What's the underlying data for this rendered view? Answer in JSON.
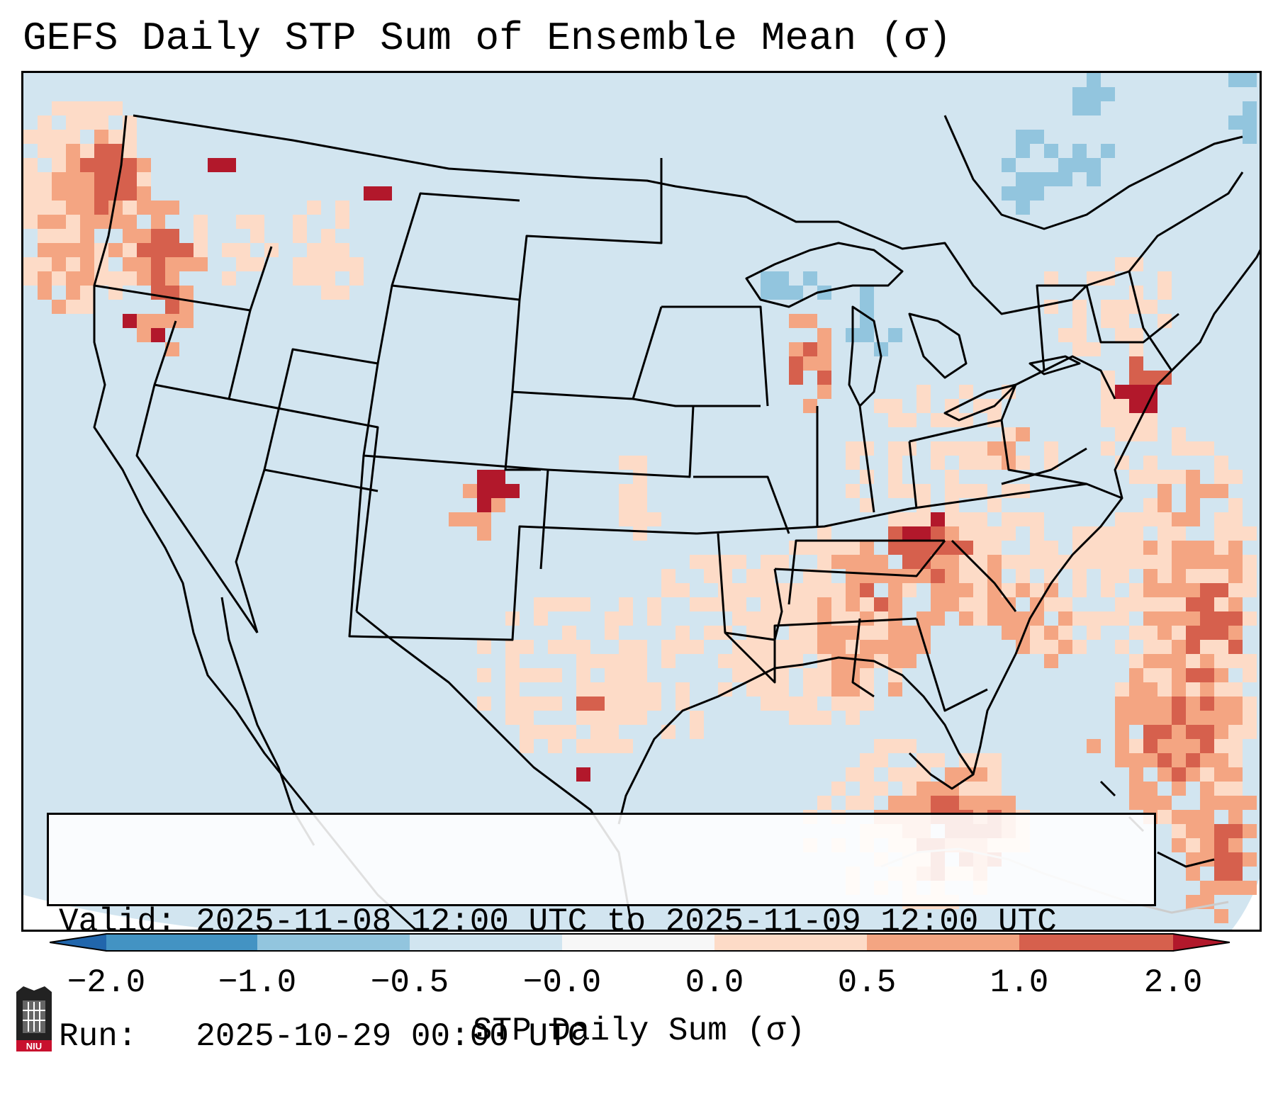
{
  "title": "GEFS Daily STP Sum of Ensemble Mean (σ)",
  "info": {
    "valid_line": "Valid: 2025-11-08 12:00 UTC to 2025-11-09 12:00 UTC",
    "run_line": "Run:   2025-10-29 00:00 UTC"
  },
  "colorbar": {
    "label": "STP Daily Sum (σ)",
    "ticks": [
      "−2.0",
      "−1.0",
      "−0.5",
      "−0.0",
      "0.0",
      "0.5",
      "1.0",
      "2.0"
    ],
    "bins": [
      {
        "range": "-2.0 to -1.0",
        "color": "#4393c3"
      },
      {
        "range": "-1.0 to -0.5",
        "color": "#92c5de"
      },
      {
        "range": "-0.5 to -0.0",
        "color": "#d1e5f0"
      },
      {
        "range": "-0.0 to 0.0",
        "color": "#f7f7f7"
      },
      {
        "range": "0.0 to 0.5",
        "color": "#fddbc7"
      },
      {
        "range": "0.5 to 1.0",
        "color": "#f4a582"
      },
      {
        "range": "1.0 to 2.0",
        "color": "#d6604d"
      },
      {
        "range": "above 2.0",
        "color": "#b2182b"
      },
      {
        "range": "below -2.0",
        "color": "#2166ac"
      }
    ]
  },
  "logo": {
    "text": "NIU"
  },
  "map_regions": [
    {
      "name": "pacific-northwest",
      "value": "high"
    },
    {
      "name": "colorado-southeast",
      "value": "very high"
    },
    {
      "name": "tennessee-valley",
      "value": "very high"
    },
    {
      "name": "new-jersey-coast",
      "value": "very high"
    },
    {
      "name": "texas-southwest",
      "value": "high"
    },
    {
      "name": "atlantic-offshore",
      "value": "high"
    },
    {
      "name": "great-lakes",
      "value": "negative"
    },
    {
      "name": "quebec",
      "value": "negative"
    }
  ]
}
